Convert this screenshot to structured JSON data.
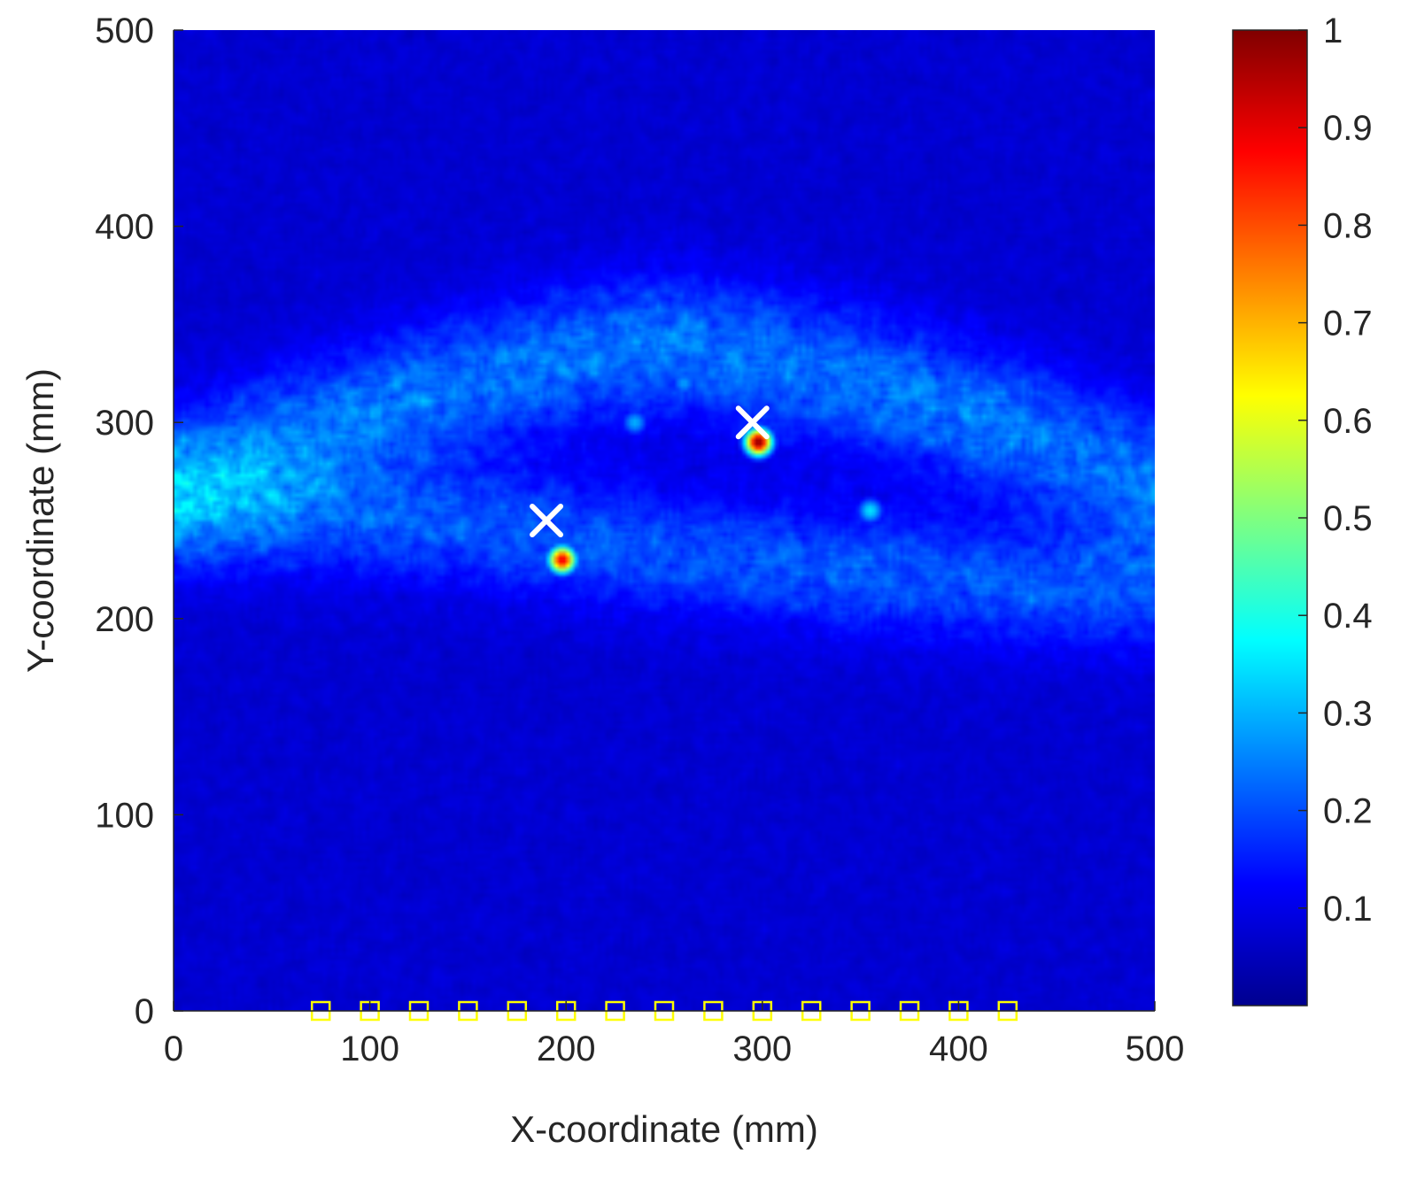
{
  "chart_data": {
    "type": "heatmap",
    "xlabel": "X-coordinate (mm)",
    "ylabel": "Y-coordinate (mm)",
    "xlim": [
      0,
      500
    ],
    "ylim": [
      0,
      500
    ],
    "xticks": [
      0,
      100,
      200,
      300,
      400,
      500
    ],
    "yticks": [
      0,
      100,
      200,
      300,
      400,
      500
    ],
    "colorbar": {
      "colormap": "jet",
      "range": [
        0,
        1
      ],
      "ticks": [
        0.1,
        0.2,
        0.3,
        0.4,
        0.5,
        0.6,
        0.7,
        0.8,
        0.9,
        1
      ],
      "tick_labels": [
        "0.1",
        "0.2",
        "0.3",
        "0.4",
        "0.5",
        "0.6",
        "0.7",
        "0.8",
        "0.9",
        "1"
      ]
    },
    "background_level": 0.05,
    "scattering_band": {
      "description_level": 0.18
    },
    "peaks": [
      {
        "x": 298,
        "y": 290,
        "value": 1.0
      },
      {
        "x": 198,
        "y": 230,
        "value": 0.9
      },
      {
        "x": 355,
        "y": 255,
        "value": 0.35
      },
      {
        "x": 235,
        "y": 300,
        "value": 0.3
      },
      {
        "x": 260,
        "y": 320,
        "value": 0.28
      }
    ],
    "true_positions": {
      "marker": "x",
      "color": "#ffffff",
      "points": [
        {
          "x": 190,
          "y": 250
        },
        {
          "x": 295,
          "y": 300
        }
      ]
    },
    "sensors": {
      "marker": "square",
      "color": "#ffff00",
      "y": 0,
      "x": [
        75,
        100,
        125,
        150,
        175,
        200,
        225,
        250,
        275,
        300,
        325,
        350,
        375,
        400,
        425
      ]
    }
  }
}
